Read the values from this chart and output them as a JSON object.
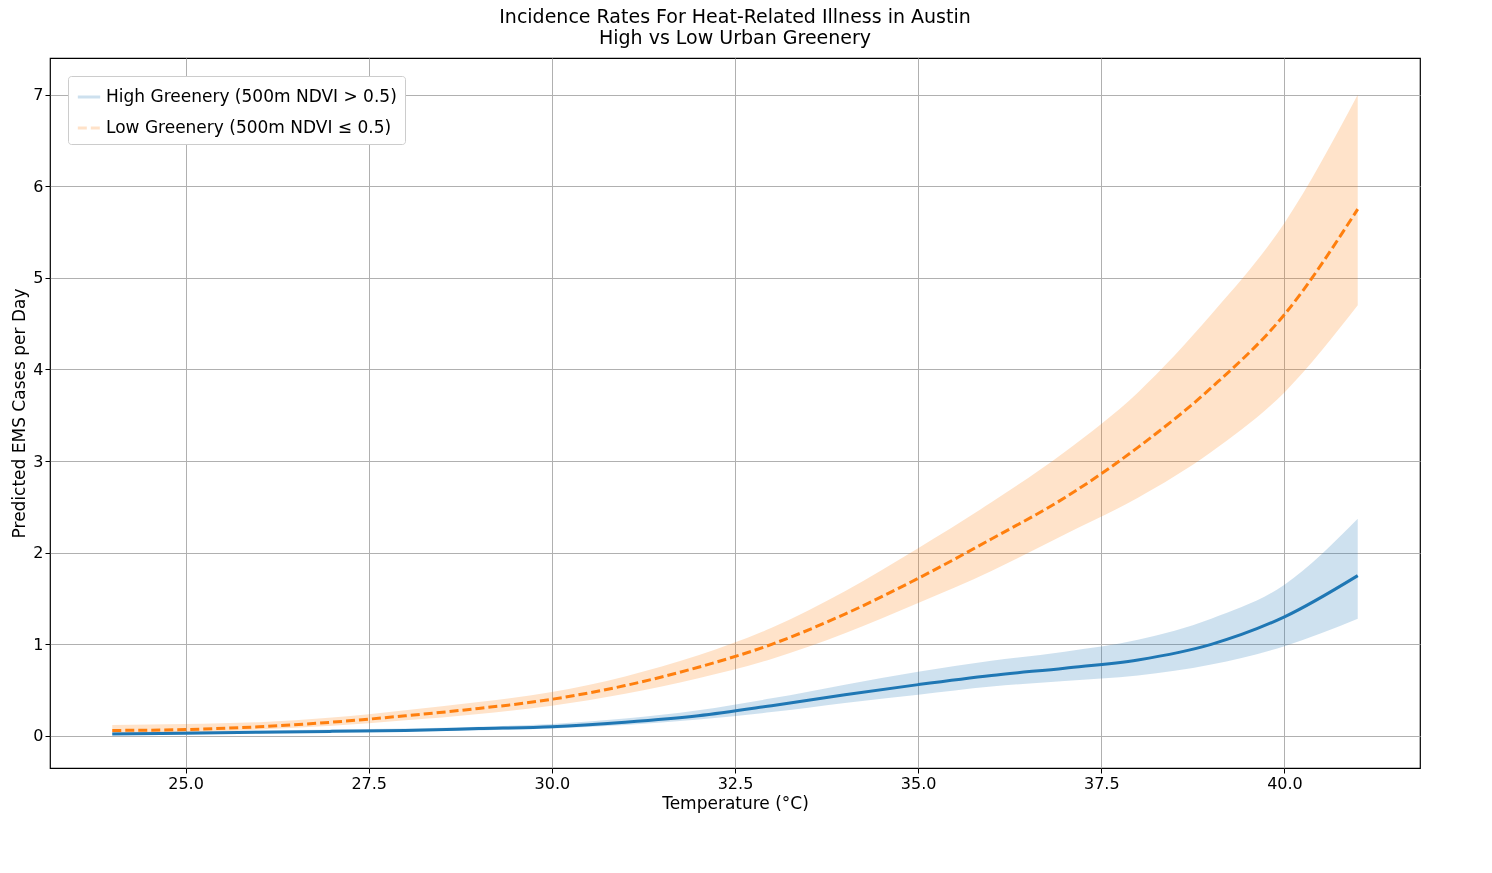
{
  "chart_data": {
    "type": "line",
    "title": "Incidence Rates For Heat-Related Illness in Austin",
    "subtitle": "High vs Low Urban Greenery",
    "xlabel": "Temperature (°C)",
    "ylabel": "Predicted EMS Cases per Day",
    "x": [
      24,
      25,
      26,
      27,
      28,
      29,
      30,
      31,
      32,
      33,
      34,
      35,
      36,
      37,
      38,
      39,
      40,
      41
    ],
    "series": [
      {
        "name": "High Greenery (500m NDVI > 0.5)",
        "color": "#1f77b4",
        "line_style": "solid",
        "values": [
          0.02,
          0.03,
          0.04,
          0.05,
          0.06,
          0.08,
          0.1,
          0.15,
          0.22,
          0.33,
          0.45,
          0.56,
          0.66,
          0.74,
          0.83,
          1.0,
          1.3,
          1.75
        ],
        "lower": [
          0.01,
          0.02,
          0.03,
          0.04,
          0.05,
          0.06,
          0.08,
          0.12,
          0.18,
          0.26,
          0.36,
          0.45,
          0.54,
          0.6,
          0.66,
          0.78,
          0.98,
          1.28
        ],
        "upper": [
          0.04,
          0.05,
          0.06,
          0.07,
          0.08,
          0.1,
          0.13,
          0.19,
          0.28,
          0.41,
          0.56,
          0.7,
          0.82,
          0.92,
          1.05,
          1.28,
          1.65,
          2.37
        ]
      },
      {
        "name": "Low Greenery (500m NDVI ≤ 0.5)",
        "color": "#ff7f0e",
        "line_style": "dashed",
        "values": [
          0.06,
          0.07,
          0.1,
          0.15,
          0.22,
          0.3,
          0.4,
          0.55,
          0.75,
          1.0,
          1.33,
          1.72,
          2.15,
          2.6,
          3.15,
          3.8,
          4.6,
          5.75
        ],
        "lower": [
          0.03,
          0.04,
          0.07,
          0.11,
          0.17,
          0.24,
          0.33,
          0.46,
          0.63,
          0.84,
          1.12,
          1.45,
          1.8,
          2.2,
          2.6,
          3.1,
          3.75,
          4.7
        ],
        "upper": [
          0.12,
          0.13,
          0.15,
          0.2,
          0.28,
          0.37,
          0.48,
          0.65,
          0.88,
          1.18,
          1.58,
          2.05,
          2.55,
          3.1,
          3.75,
          4.6,
          5.6,
          7.0
        ]
      }
    ],
    "xlim": [
      23.15,
      41.85
    ],
    "ylim": [
      -0.35,
      7.4
    ],
    "xticks": [
      {
        "value": 25,
        "label": "25.0"
      },
      {
        "value": 27.5,
        "label": "27.5"
      },
      {
        "value": 30,
        "label": "30.0"
      },
      {
        "value": 32.5,
        "label": "32.5"
      },
      {
        "value": 35,
        "label": "35.0"
      },
      {
        "value": 37.5,
        "label": "37.5"
      },
      {
        "value": 40,
        "label": "40.0"
      }
    ],
    "yticks": [
      0,
      1,
      2,
      3,
      4,
      5,
      6,
      7
    ],
    "grid": true,
    "legend": "top left"
  }
}
